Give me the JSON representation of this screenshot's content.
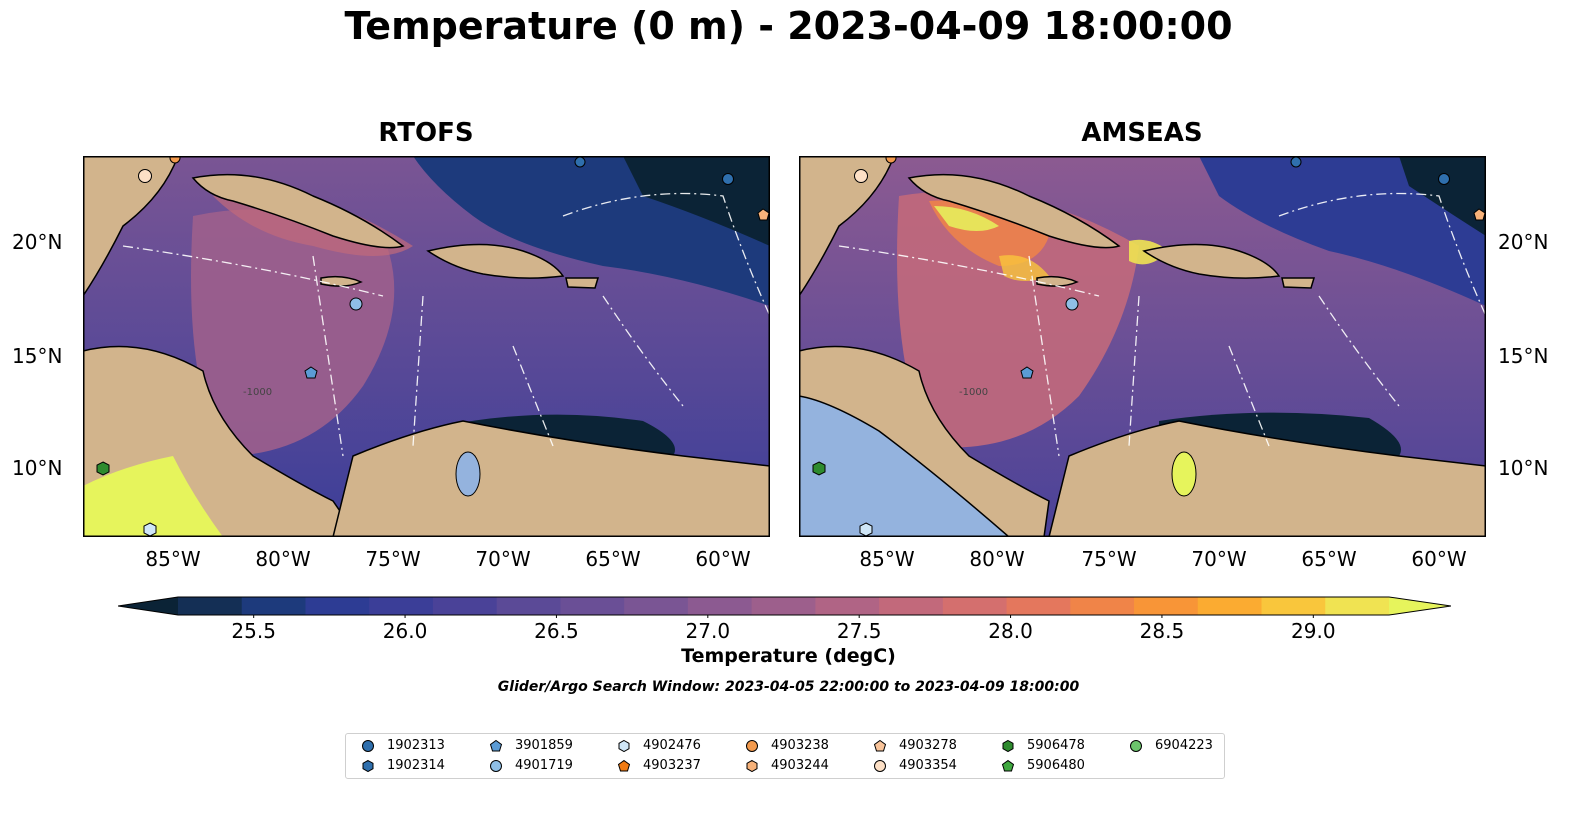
{
  "title": "Temperature (0 m) - 2023-04-09 18:00:00",
  "panels": [
    {
      "title": "RTOFS"
    },
    {
      "title": "AMSEAS"
    }
  ],
  "axes": {
    "lon_labels": [
      "85°W",
      "80°W",
      "75°W",
      "70°W",
      "65°W",
      "60°W"
    ],
    "lat_labels": [
      "20°N",
      "15°N",
      "10°N"
    ]
  },
  "contour_labels": [
    "-1000",
    "-1000"
  ],
  "colorbar": {
    "label": "Temperature (degC)",
    "ticks": [
      "25.5",
      "26.0",
      "26.5",
      "27.0",
      "27.5",
      "28.0",
      "28.5",
      "29.0"
    ],
    "range": [
      25.25,
      29.25
    ],
    "colors": [
      "#0b2336",
      "#142f55",
      "#1d3a7c",
      "#2d3c94",
      "#3b3e98",
      "#4a4298",
      "#5b4a97",
      "#6a4f96",
      "#7a5594",
      "#8c5a91",
      "#9d5f8c",
      "#b06485",
      "#c2697b",
      "#d46f6e",
      "#e4775d",
      "#f08448",
      "#f89537",
      "#fbab31",
      "#f9c63c",
      "#f0e352",
      "#e6f45c"
    ]
  },
  "search_window": "Glider/Argo Search Window: 2023-04-05 22:00:00 to 2023-04-09 18:00:00",
  "legend": {
    "items": [
      {
        "label": "1902313",
        "marker": "circle",
        "color": "#2f6fad"
      },
      {
        "label": "1902314",
        "marker": "hexagon",
        "color": "#2f6fad"
      },
      {
        "label": "3901859",
        "marker": "pentagon",
        "color": "#5b9bd5"
      },
      {
        "label": "4901719",
        "marker": "circle",
        "color": "#8fbfe6"
      },
      {
        "label": "4902476",
        "marker": "hexagon",
        "color": "#cfe6f7"
      },
      {
        "label": "4903237",
        "marker": "pentagon",
        "color": "#f07a12"
      },
      {
        "label": "4903238",
        "marker": "circle",
        "color": "#f39a4d"
      },
      {
        "label": "4903244",
        "marker": "hexagon",
        "color": "#f7b27a"
      },
      {
        "label": "4903278",
        "marker": "pentagon",
        "color": "#f9c49a"
      },
      {
        "label": "4903354",
        "marker": "circle",
        "color": "#fde0c6"
      },
      {
        "label": "5906478",
        "marker": "hexagon",
        "color": "#2e8b2e"
      },
      {
        "label": "5906480",
        "marker": "pentagon",
        "color": "#3fa83f"
      },
      {
        "label": "6904223",
        "marker": "circle",
        "color": "#6cc46c"
      }
    ]
  }
}
